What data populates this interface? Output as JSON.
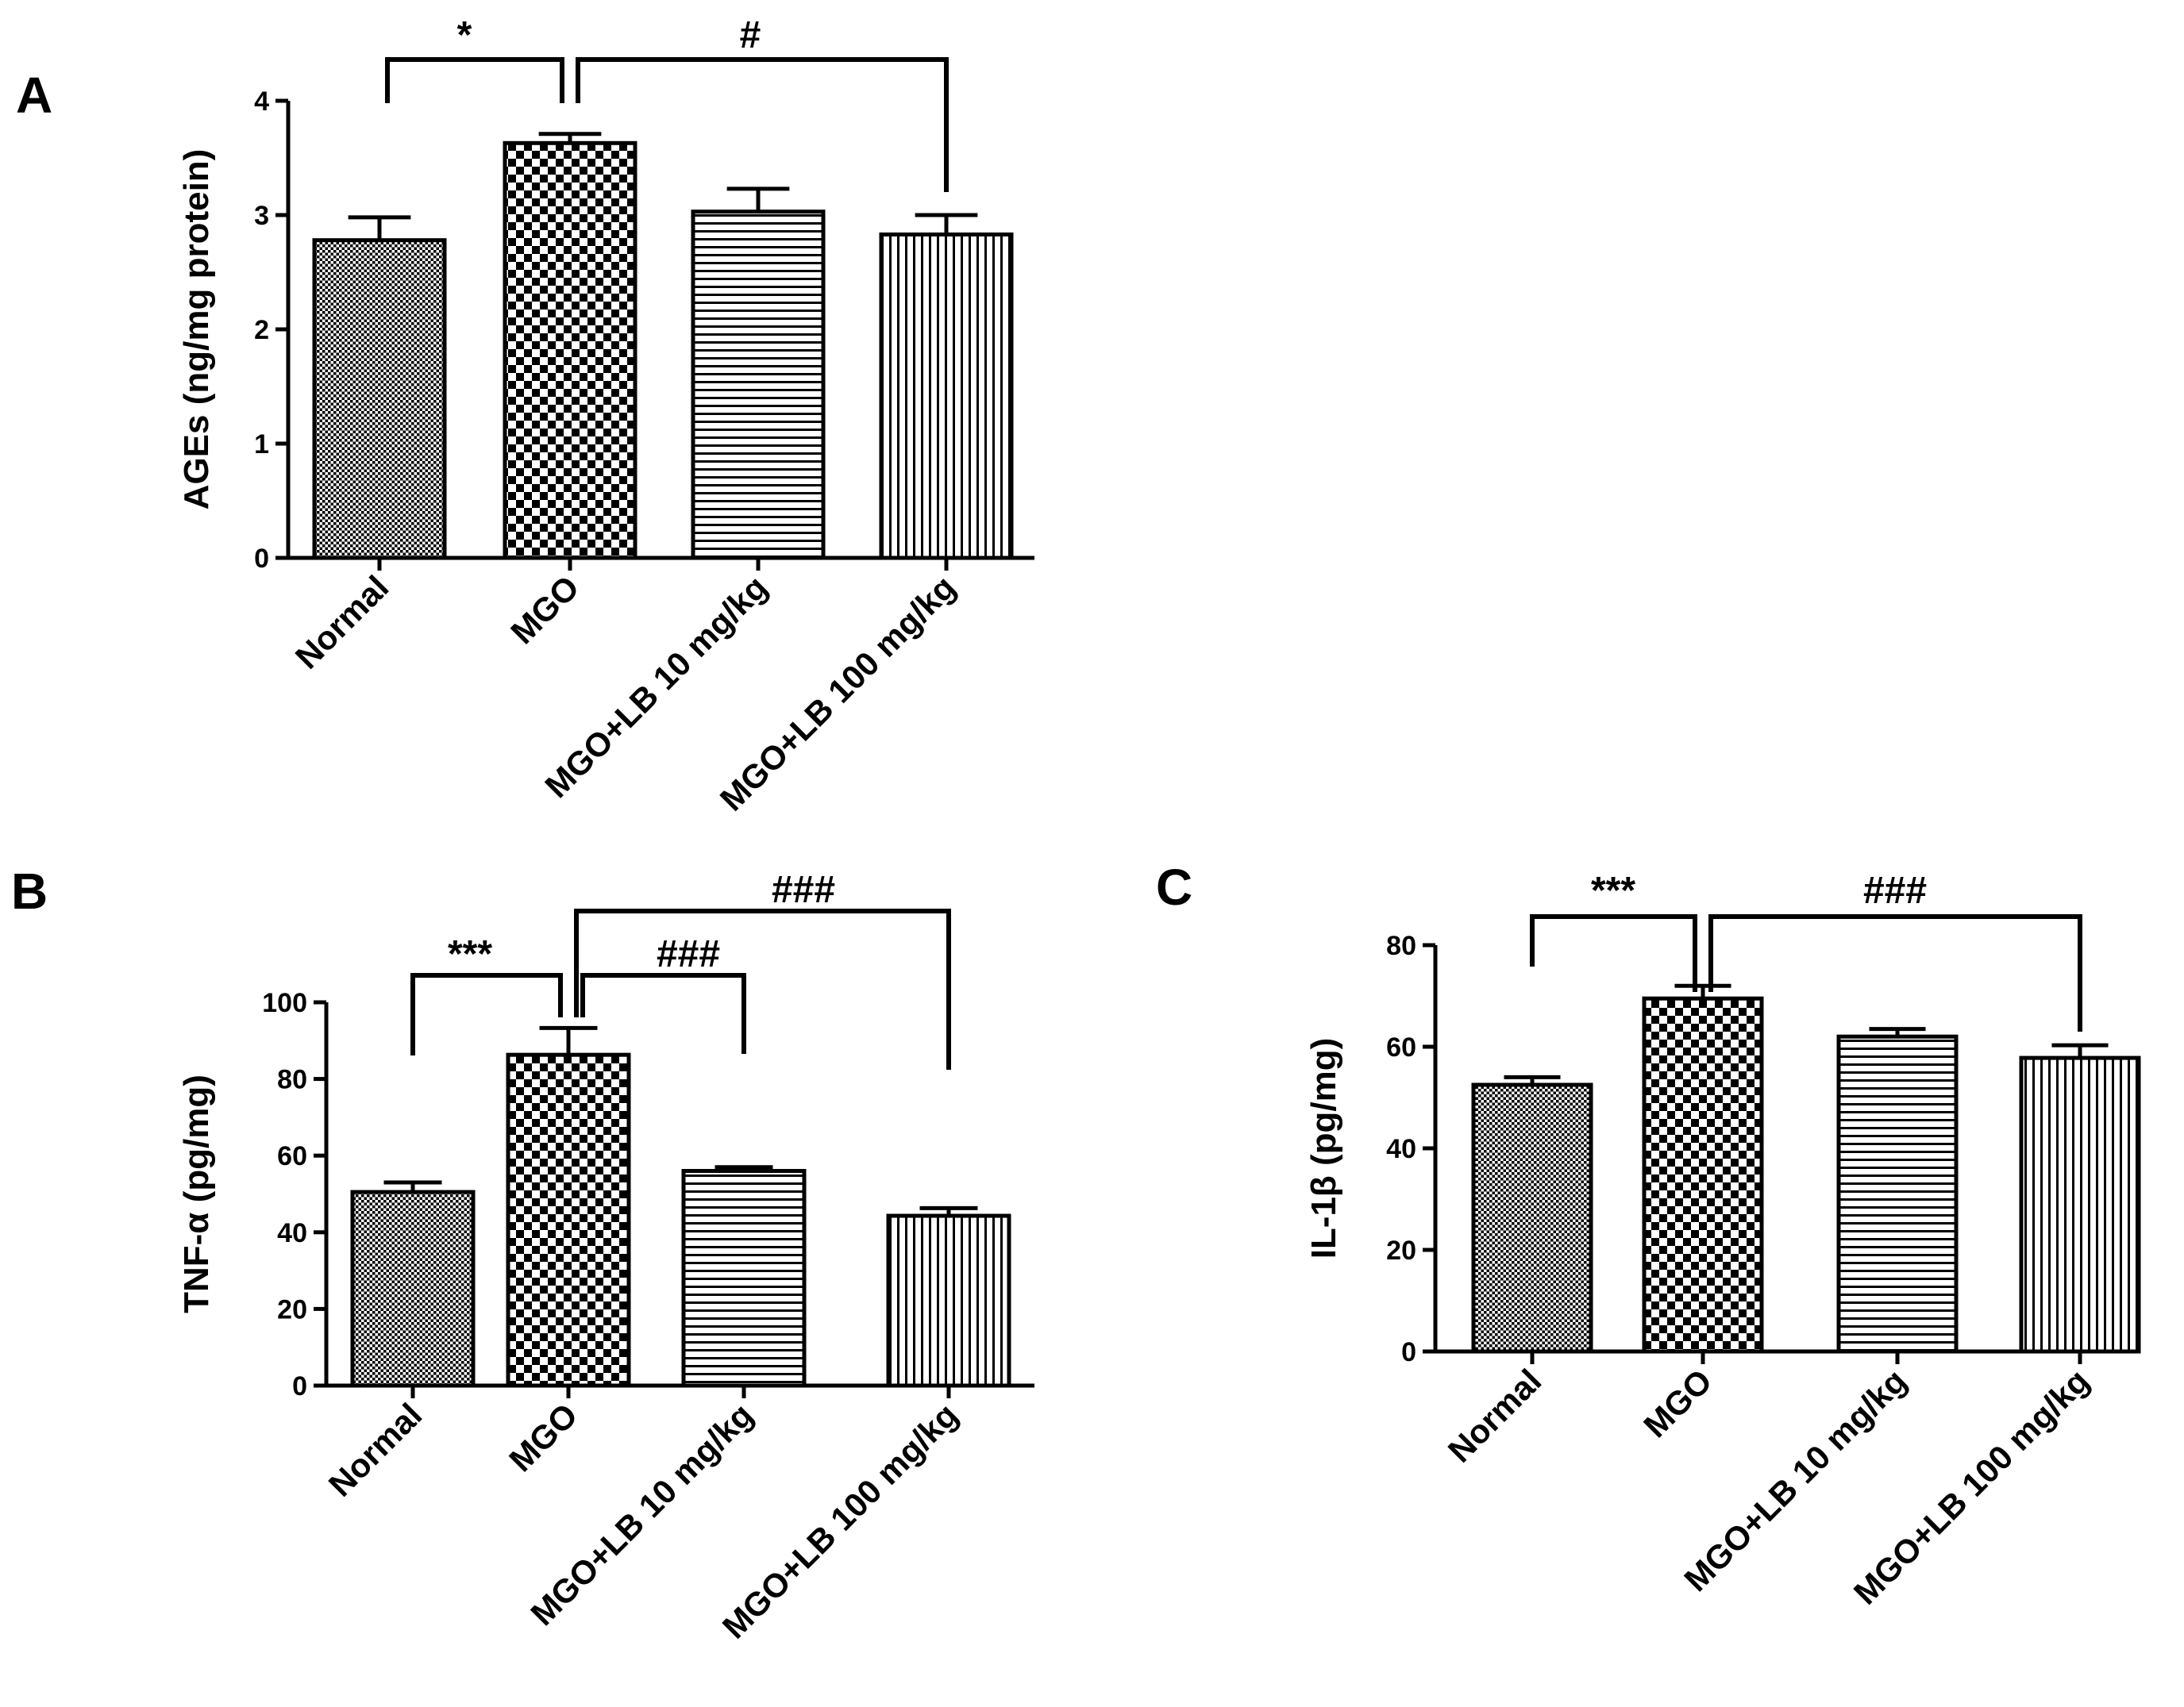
{
  "chart_data": [
    {
      "panel": "A",
      "type": "bar",
      "categories": [
        "Normal",
        "MGO",
        "MGO+LB 10 mg/kg",
        "MGO+LB 100 mg/kg"
      ],
      "values": [
        2.78,
        3.63,
        3.03,
        2.83
      ],
      "errors": [
        0.2,
        0.08,
        0.2,
        0.17
      ],
      "patterns": [
        "dots",
        "checker",
        "hlines",
        "vlines"
      ],
      "ylabel": "AGEs (ng/mg protein)",
      "ylim": [
        0,
        4
      ],
      "yticks": [
        "0",
        "1",
        "2",
        "3",
        "4"
      ],
      "significance": [
        {
          "label": "*",
          "from": "Normal",
          "to": "MGO"
        },
        {
          "label": "#",
          "from": "MGO",
          "to": "MGO+LB 100 mg/kg"
        }
      ]
    },
    {
      "panel": "B",
      "type": "bar",
      "categories": [
        "Normal",
        "MGO",
        "MGO+LB 10 mg/kg",
        "MGO+LB 100 mg/kg"
      ],
      "values": [
        50.5,
        86.3,
        56,
        44.3
      ],
      "errors": [
        2.5,
        7,
        1,
        2
      ],
      "patterns": [
        "dots",
        "checker",
        "hlines",
        "vlines"
      ],
      "ylabel": "TNF-α (pg/mg)",
      "ylim": [
        0,
        100
      ],
      "yticks": [
        "0",
        "20",
        "40",
        "60",
        "80",
        "100"
      ],
      "significance": [
        {
          "label": "***",
          "from": "Normal",
          "to": "MGO"
        },
        {
          "label": "###",
          "from": "MGO",
          "to": "MGO+LB 10 mg/kg"
        },
        {
          "label": "###",
          "from": "MGO",
          "to": "MGO+LB 100 mg/kg"
        }
      ]
    },
    {
      "panel": "C",
      "type": "bar",
      "categories": [
        "Normal",
        "MGO",
        "MGO+LB 10 mg/kg",
        "MGO+LB 100 mg/kg"
      ],
      "values": [
        52.5,
        69.5,
        62,
        57.8
      ],
      "errors": [
        1.5,
        2.5,
        1.5,
        2.5
      ],
      "patterns": [
        "dots",
        "checker",
        "hlines",
        "vlines"
      ],
      "ylabel": "IL-1β (pg/mg)",
      "ylim": [
        0,
        80
      ],
      "yticks": [
        "0",
        "20",
        "40",
        "60",
        "80"
      ],
      "significance": [
        {
          "label": "***",
          "from": "Normal",
          "to": "MGO"
        },
        {
          "label": "###",
          "from": "MGO",
          "to": "MGO+LB 100 mg/kg"
        }
      ]
    }
  ]
}
